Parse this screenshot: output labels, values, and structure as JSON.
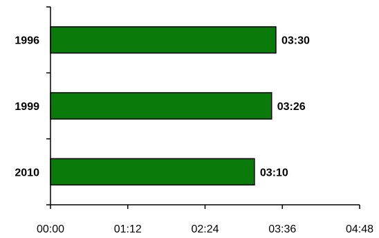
{
  "chart_data": {
    "type": "bar",
    "orientation": "horizontal",
    "categories": [
      "1996",
      "1999",
      "2010"
    ],
    "values": [
      210,
      206,
      190
    ],
    "value_unit": "minutes",
    "data_labels": [
      "03:30",
      "03:26",
      "03:10"
    ],
    "xlim": [
      0,
      288
    ],
    "xticks": [
      0,
      72,
      144,
      216,
      288
    ],
    "xtick_labels": [
      "00:00",
      "01:12",
      "02:24",
      "03:36",
      "04:48"
    ],
    "title": "",
    "xlabel": "",
    "ylabel": "",
    "grid": false,
    "legend": "none",
    "colors": {
      "bar_fill": "#0a7a0a",
      "bar_stroke": "#000000",
      "axis": "#000000"
    }
  }
}
